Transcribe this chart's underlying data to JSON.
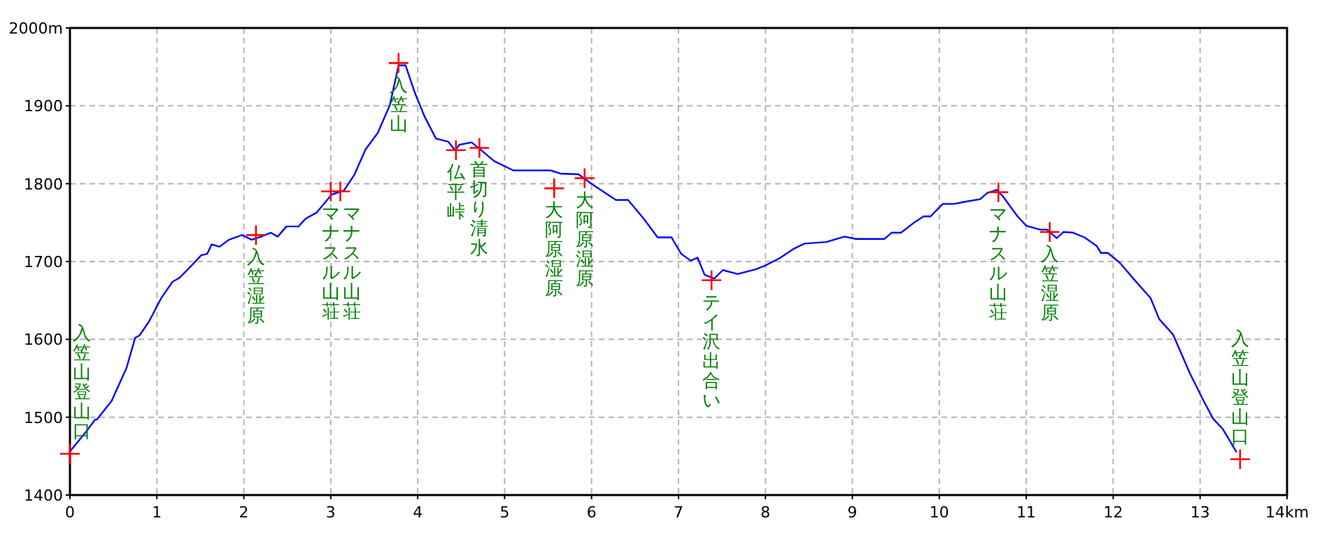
{
  "chart_data": {
    "type": "line",
    "xlim": [
      0,
      14
    ],
    "ylim": [
      1400,
      2000
    ],
    "xticks": [
      0,
      1,
      2,
      3,
      4,
      5,
      6,
      7,
      8,
      9,
      10,
      11,
      12,
      13,
      {
        "value": 14,
        "label": "14km"
      }
    ],
    "yticks": [
      1400,
      1500,
      1600,
      1700,
      1800,
      1900,
      {
        "value": 2000,
        "label": "2000m"
      }
    ],
    "grid": true,
    "series": [
      {
        "color": "#0000ff",
        "marker": "none",
        "x": [
          0,
          0.19,
          0.29,
          0.31,
          0.48,
          0.65,
          0.75,
          0.8,
          0.91,
          1.05,
          1.18,
          1.26,
          1.4,
          1.51,
          1.58,
          1.63,
          1.72,
          1.83,
          1.98,
          2.09,
          2.2,
          2.31,
          2.39,
          2.49,
          2.63,
          2.71,
          2.84,
          3.01,
          3.15,
          3.27,
          3.4,
          3.54,
          3.68,
          3.78,
          3.86,
          3.97,
          4.08,
          4.21,
          4.35,
          4.43,
          4.48,
          4.62,
          4.72,
          4.88,
          5.1,
          5.53,
          5.64,
          5.85,
          6.01,
          6.28,
          6.42,
          6.6,
          6.76,
          6.92,
          7.03,
          7.14,
          7.22,
          7.3,
          7.41,
          7.51,
          7.68,
          7.89,
          8.0,
          8.16,
          8.32,
          8.45,
          8.7,
          8.91,
          9.04,
          9.37,
          9.45,
          9.56,
          9.71,
          9.82,
          9.9,
          10.04,
          10.17,
          10.31,
          10.47,
          10.55,
          10.66,
          10.73,
          10.9,
          11.0,
          11.16,
          11.24,
          11.35,
          11.43,
          11.54,
          11.67,
          11.81,
          11.86,
          11.94,
          12.08,
          12.24,
          12.43,
          12.53,
          12.69,
          12.88,
          13.04,
          13.15,
          13.26,
          13.42
        ],
        "values": [
          1456,
          1482,
          1497,
          1497,
          1521,
          1563,
          1602,
          1605,
          1623,
          1653,
          1674,
          1679,
          1695,
          1708,
          1710,
          1722,
          1719,
          1728,
          1734,
          1728,
          1732,
          1737,
          1732,
          1745,
          1745,
          1755,
          1763,
          1786,
          1791,
          1811,
          1844,
          1865,
          1901,
          1952,
          1952,
          1916,
          1886,
          1858,
          1854,
          1843,
          1850,
          1853,
          1844,
          1829,
          1817,
          1817,
          1813,
          1812,
          1799,
          1779,
          1779,
          1755,
          1731,
          1731,
          1710,
          1701,
          1705,
          1683,
          1678,
          1689,
          1684,
          1690,
          1695,
          1704,
          1716,
          1723,
          1725,
          1732,
          1729,
          1729,
          1737,
          1737,
          1750,
          1758,
          1758,
          1774,
          1774,
          1777,
          1780,
          1788,
          1792,
          1784,
          1758,
          1746,
          1741,
          1741,
          1730,
          1738,
          1737,
          1731,
          1720,
          1711,
          1711,
          1698,
          1677,
          1653,
          1626,
          1606,
          1557,
          1521,
          1498,
          1485,
          1455
        ]
      },
      {
        "type": "scatter",
        "color": "#ff0000",
        "marker": "cross",
        "x": [
          0,
          2.14,
          3.0,
          3.11,
          3.78,
          4.44,
          4.71,
          5.57,
          5.92,
          7.38,
          10.68,
          11.27,
          13.46
        ],
        "values": [
          1453,
          1734,
          1790,
          1790,
          1955,
          1843,
          1846,
          1794,
          1807,
          1676,
          1789,
          1738,
          1446
        ]
      }
    ],
    "annotations": [
      {
        "text": "入笠山登山口",
        "x": 0,
        "y": 1453
      },
      {
        "text": "入笠湿原",
        "x": 2.14,
        "y": 1734
      },
      {
        "text": "マナスル山荘",
        "x": 3.0,
        "y": 1790
      },
      {
        "text": "マナスル山荘",
        "x": 3.11,
        "y": 1790
      },
      {
        "text": "入笠山",
        "x": 3.78,
        "y": 1955
      },
      {
        "text": "仏平峠",
        "x": 4.44,
        "y": 1843
      },
      {
        "text": "首切り清水",
        "x": 4.71,
        "y": 1846
      },
      {
        "text": "大阿原湿原",
        "x": 5.57,
        "y": 1794
      },
      {
        "text": "大阿原湿原",
        "x": 5.92,
        "y": 1807
      },
      {
        "text": "テイ沢出合い",
        "x": 7.38,
        "y": 1676
      },
      {
        "text": "マナスル山荘",
        "x": 10.68,
        "y": 1789
      },
      {
        "text": "入笠湿原",
        "x": 11.27,
        "y": 1738
      },
      {
        "text": "入笠山登山口",
        "x": 13.46,
        "y": 1446
      }
    ]
  }
}
